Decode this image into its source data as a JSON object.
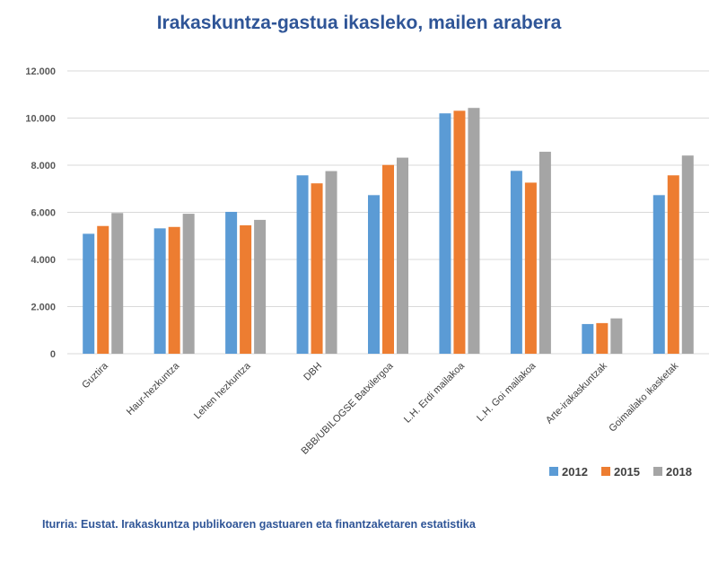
{
  "chart_data": {
    "type": "bar",
    "title": "Irakaskuntza-gastua ikasleko, mailen arabera",
    "xlabel": "",
    "ylabel": "",
    "ylim": [
      0,
      12000
    ],
    "yticks": [
      0,
      2000,
      4000,
      6000,
      8000,
      10000,
      12000
    ],
    "ytick_labels": [
      "0",
      "2.000",
      "4.000",
      "6.000",
      "8.000",
      "10.000",
      "12.000"
    ],
    "grid": true,
    "legend_position": "bottom-right",
    "categories": [
      "Guztira",
      "Haur-hezkuntza",
      "Lehen hezkuntza",
      "DBH",
      "BBB/UBILOGSE Batxilergoa",
      "L.H. Erdi mailakoa",
      "L.H. Goi mailakoa",
      "Arte-irakaskuntzak",
      "Goimailako ikasketak"
    ],
    "series": [
      {
        "name": "2012",
        "color": "#5B9BD5",
        "values": [
          5090,
          5320,
          6020,
          7570,
          6730,
          10200,
          7760,
          1260,
          6730
        ]
      },
      {
        "name": "2015",
        "color": "#ED7D31",
        "values": [
          5420,
          5380,
          5450,
          7230,
          8010,
          10310,
          7260,
          1300,
          7570
        ]
      },
      {
        "name": "2018",
        "color": "#A5A5A5",
        "values": [
          5970,
          5940,
          5680,
          7750,
          8320,
          10430,
          8570,
          1500,
          8410
        ]
      }
    ]
  },
  "source": "Iturria: Eustat. Irakaskuntza publikoaren gastuaren eta finantzaketaren estatistika"
}
